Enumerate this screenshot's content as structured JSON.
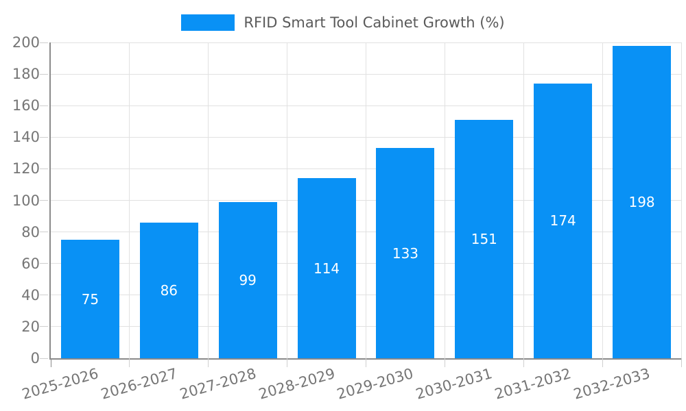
{
  "legend": {
    "label": "RFID Smart Tool Cabinet Growth (%)"
  },
  "colors": {
    "bar": "#0991F5",
    "grid": "#E1E1E1",
    "axis": "#8A8A8A",
    "tick": "#CFCFCF",
    "axis_label": "#757575",
    "bar_label": "#FFFFFF",
    "legend_text": "#5A5A5A",
    "background": "#FFFFFF"
  },
  "chart_data": {
    "type": "bar",
    "title": "RFID Smart Tool Cabinet Growth (%)",
    "categories": [
      "2025-2026",
      "2026-2027",
      "2027-2028",
      "2028-2029",
      "2029-2030",
      "2030-2031",
      "2031-2032",
      "2032-2033"
    ],
    "values": [
      75,
      86,
      99,
      114,
      133,
      151,
      174,
      198
    ],
    "xlabel": "",
    "ylabel": "",
    "ylim": [
      0,
      200
    ],
    "yticks": [
      0,
      20,
      40,
      60,
      80,
      100,
      120,
      140,
      160,
      180,
      200
    ],
    "grid": true,
    "legend_position": "top-center",
    "value_labels": "inside-center",
    "x_label_rotation_deg": -16
  }
}
